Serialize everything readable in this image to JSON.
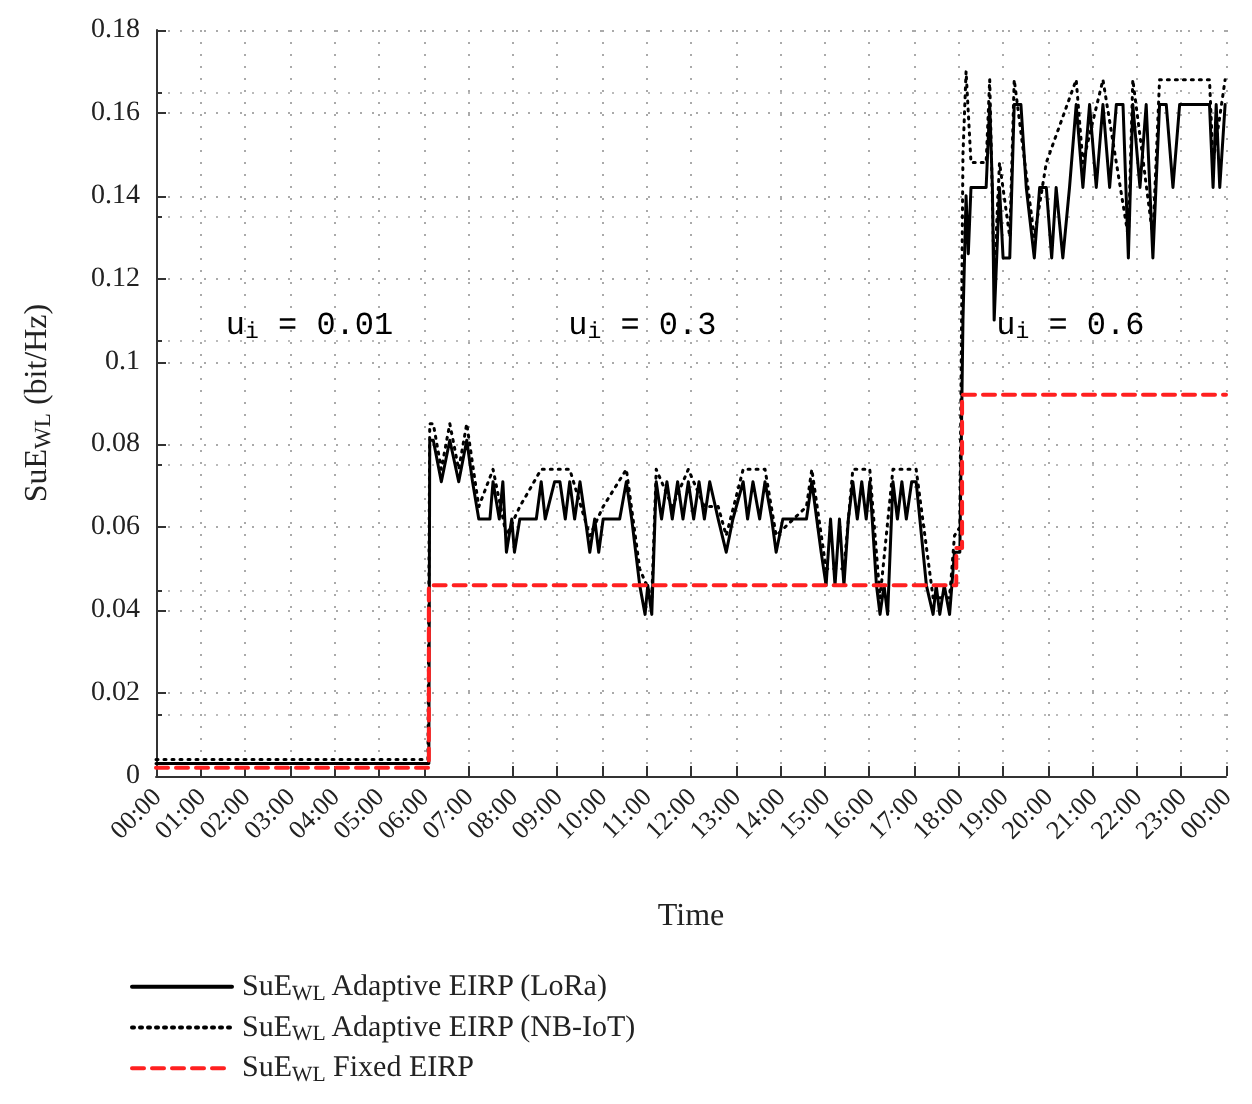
{
  "chart_data": {
    "type": "line",
    "xlabel": "Time",
    "ylabel": "SuE$_{WL}$ (bit/Hz)",
    "xlim": [
      0,
      24
    ],
    "xticks": [
      {
        "value": 0,
        "label": "00:00"
      },
      {
        "value": 1,
        "label": "01:00"
      },
      {
        "value": 2,
        "label": "02:00"
      },
      {
        "value": 3,
        "label": "03:00"
      },
      {
        "value": 4,
        "label": "04:00"
      },
      {
        "value": 5,
        "label": "05:00"
      },
      {
        "value": 6,
        "label": "06:00"
      },
      {
        "value": 7,
        "label": "07:00"
      },
      {
        "value": 8,
        "label": "08:00"
      },
      {
        "value": 9,
        "label": "09:00"
      },
      {
        "value": 10,
        "label": "10:00"
      },
      {
        "value": 11,
        "label": "11:00"
      },
      {
        "value": 12,
        "label": "12:00"
      },
      {
        "value": 13,
        "label": "13:00"
      },
      {
        "value": 14,
        "label": "14:00"
      },
      {
        "value": 15,
        "label": "15:00"
      },
      {
        "value": 16,
        "label": "16:00"
      },
      {
        "value": 17,
        "label": "17:00"
      },
      {
        "value": 18,
        "label": "18:00"
      },
      {
        "value": 19,
        "label": "19:00"
      },
      {
        "value": 20,
        "label": "20:00"
      },
      {
        "value": 21,
        "label": "21:00"
      },
      {
        "value": 22,
        "label": "22:00"
      },
      {
        "value": 23,
        "label": "23:00"
      },
      {
        "value": 24,
        "label": "00:00"
      }
    ],
    "ylim": [
      0,
      0.18
    ],
    "yticks": [
      0,
      0.02,
      0.04,
      0.06,
      0.08,
      0.1,
      0.12,
      0.14,
      0.16,
      0.18
    ],
    "grid": true,
    "legend": "bottom",
    "marker": "none",
    "annotations": [
      "u$_{i}$ = 0.01",
      "u$_{i}$ = 0.3",
      "u$_{i}$ = 0.6"
    ],
    "series": [
      {
        "name": "SuE$_{WL}$ Adaptive EIRP (LoRa)",
        "type": "line",
        "line_style": "solid",
        "color": "#000000",
        "x": [
          0,
          6.12,
          6.14,
          6.22,
          6.4,
          6.59,
          6.79,
          6.97,
          7.1,
          7.24,
          7.49,
          7.56,
          7.7,
          7.78,
          7.86,
          7.98,
          8.04,
          8.16,
          8.53,
          8.64,
          8.73,
          8.94,
          9.06,
          9.18,
          9.28,
          9.39,
          9.51,
          9.63,
          9.73,
          9.84,
          9.93,
          10.03,
          10.4,
          10.55,
          10.67,
          10.85,
          10.97,
          11.03,
          11.12,
          11.22,
          11.34,
          11.46,
          11.58,
          11.7,
          11.82,
          11.94,
          12.06,
          12.18,
          12.3,
          12.42,
          12.61,
          12.79,
          12.94,
          13.17,
          13.27,
          13.39,
          13.54,
          13.66,
          13.81,
          13.91,
          14.06,
          14.59,
          14.71,
          14.82,
          14.92,
          15.03,
          15.13,
          15.23,
          15.33,
          15.43,
          15.53,
          15.63,
          15.73,
          15.83,
          15.93,
          16.01,
          16.16,
          16.24,
          16.33,
          16.41,
          16.53,
          16.63,
          16.73,
          16.83,
          16.95,
          17.05,
          17.28,
          17.43,
          17.5,
          17.58,
          17.68,
          17.8,
          17.91,
          18.03,
          18.1,
          18.17,
          18.22,
          18.28,
          18.62,
          18.7,
          18.76,
          18.8,
          18.92,
          19.0,
          19.15,
          19.25,
          19.4,
          19.52,
          19.7,
          19.82,
          19.97,
          20.09,
          20.19,
          20.34,
          20.49,
          20.64,
          20.79,
          20.94,
          21.09,
          21.24,
          21.39,
          21.54,
          21.69,
          21.81,
          21.91,
          22.07,
          22.21,
          22.36,
          22.51,
          22.66,
          22.81,
          22.96,
          23.63,
          23.71,
          23.78,
          23.86,
          23.98,
          24
        ],
        "values": [
          0.003,
          0.003,
          0.081,
          0.081,
          0.071,
          0.081,
          0.071,
          0.081,
          0.071,
          0.062,
          0.062,
          0.071,
          0.062,
          0.071,
          0.054,
          0.062,
          0.054,
          0.062,
          0.062,
          0.071,
          0.062,
          0.071,
          0.071,
          0.062,
          0.071,
          0.062,
          0.071,
          0.062,
          0.054,
          0.062,
          0.054,
          0.062,
          0.062,
          0.071,
          0.062,
          0.046,
          0.039,
          0.046,
          0.039,
          0.071,
          0.062,
          0.071,
          0.062,
          0.071,
          0.062,
          0.071,
          0.062,
          0.071,
          0.062,
          0.071,
          0.062,
          0.054,
          0.062,
          0.071,
          0.062,
          0.071,
          0.062,
          0.071,
          0.062,
          0.054,
          0.062,
          0.062,
          0.071,
          0.062,
          0.054,
          0.046,
          0.062,
          0.046,
          0.062,
          0.046,
          0.062,
          0.071,
          0.062,
          0.071,
          0.062,
          0.071,
          0.046,
          0.039,
          0.046,
          0.039,
          0.071,
          0.062,
          0.071,
          0.062,
          0.071,
          0.071,
          0.046,
          0.039,
          0.046,
          0.039,
          0.046,
          0.039,
          0.054,
          0.054,
          0.11,
          0.14,
          0.126,
          0.142,
          0.142,
          0.162,
          0.142,
          0.11,
          0.142,
          0.125,
          0.125,
          0.162,
          0.162,
          0.142,
          0.125,
          0.142,
          0.142,
          0.125,
          0.142,
          0.125,
          0.142,
          0.162,
          0.142,
          0.162,
          0.142,
          0.162,
          0.142,
          0.162,
          0.162,
          0.125,
          0.162,
          0.142,
          0.162,
          0.125,
          0.162,
          0.162,
          0.142,
          0.162,
          0.162,
          0.142,
          0.162,
          0.142,
          0.162,
          0.162
        ]
      },
      {
        "name": "SuE$_{WL}$ Adaptive EIRP (NB-IoT)",
        "type": "line",
        "line_style": "dotted",
        "color": "#000000",
        "x": [
          0,
          6.1,
          6.14,
          6.22,
          6.4,
          6.59,
          6.79,
          6.97,
          7.24,
          7.56,
          7.86,
          8.16,
          8.64,
          8.94,
          9.28,
          9.73,
          10.03,
          10.55,
          10.85,
          11.12,
          11.22,
          11.58,
          11.94,
          12.3,
          12.61,
          12.79,
          13.17,
          13.66,
          13.91,
          14.59,
          14.71,
          15.03,
          15.43,
          15.63,
          16.01,
          16.24,
          16.53,
          17.05,
          17.43,
          17.8,
          17.91,
          18.03,
          18.1,
          18.17,
          18.28,
          18.62,
          18.7,
          18.8,
          18.92,
          19.15,
          19.25,
          19.7,
          19.97,
          20.64,
          20.79,
          21.24,
          21.81,
          21.91,
          22.36,
          22.51,
          23.63,
          23.71,
          23.98,
          24
        ],
        "values": [
          0.004,
          0.004,
          0.085,
          0.085,
          0.074,
          0.085,
          0.074,
          0.085,
          0.065,
          0.074,
          0.058,
          0.065,
          0.074,
          0.074,
          0.074,
          0.058,
          0.065,
          0.074,
          0.05,
          0.043,
          0.074,
          0.065,
          0.074,
          0.065,
          0.065,
          0.058,
          0.074,
          0.074,
          0.058,
          0.065,
          0.074,
          0.05,
          0.05,
          0.074,
          0.074,
          0.043,
          0.074,
          0.074,
          0.043,
          0.043,
          0.058,
          0.06,
          0.15,
          0.17,
          0.148,
          0.148,
          0.168,
          0.12,
          0.148,
          0.13,
          0.168,
          0.13,
          0.148,
          0.168,
          0.148,
          0.168,
          0.13,
          0.168,
          0.13,
          0.168,
          0.168,
          0.148,
          0.168,
          0.168
        ]
      },
      {
        "name": "SuE$_{WL}$ Fixed EIRP",
        "type": "step",
        "line_style": "dashed",
        "color": "#ff2020",
        "x": [
          0,
          6.12,
          17.95,
          18.08,
          24
        ],
        "values": [
          0.002,
          0.046,
          0.055,
          0.092,
          0.092
        ]
      }
    ]
  }
}
